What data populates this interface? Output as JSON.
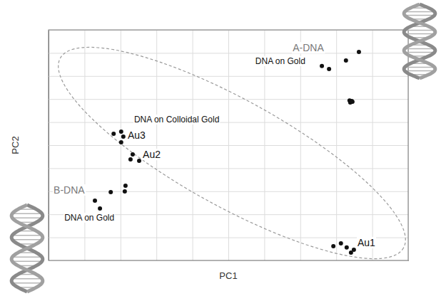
{
  "chart_data": {
    "type": "scatter",
    "x_label": "PC1",
    "y_label": "PC2",
    "xlim": [
      0,
      100
    ],
    "ylim": [
      0,
      100
    ],
    "xticks": [
      0,
      10,
      20,
      30,
      40,
      50,
      60,
      70,
      80,
      90,
      100
    ],
    "yticks": [
      0,
      10,
      20,
      30,
      40,
      50,
      60,
      70,
      80,
      90,
      100
    ],
    "grid": true,
    "tick_labels": false,
    "color": "#111111",
    "marker": "circle",
    "x": [
      86.3,
      82.7,
      76.0,
      78.0,
      83.7,
      84.3,
      83.9,
      84.5,
      20.2,
      18.1,
      20.8,
      20.2,
      23.4,
      22.8,
      25.2,
      21.4,
      21.2,
      17.3,
      12.9,
      14.3,
      79.2,
      81.3,
      82.9,
      84.1,
      84.9
    ],
    "values": [
      90.4,
      86.7,
      84.3,
      83.0,
      69.4,
      69.1,
      68.5,
      68.8,
      55.9,
      54.9,
      53.7,
      51.2,
      46.0,
      43.8,
      43.2,
      32.4,
      29.9,
      29.6,
      25.9,
      22.5,
      6.2,
      7.4,
      5.6,
      3.4,
      4.6
    ],
    "annotations": [
      {
        "text": "A-DNA",
        "x": 67.9,
        "y": 90.7,
        "color": "#7a7a7a"
      },
      {
        "text": "DNA on Gold",
        "x": 57.5,
        "y": 85.2,
        "color": "#111111"
      },
      {
        "text": "DNA on Colloidal Gold",
        "x": 23.8,
        "y": 59.9,
        "color": "#111111"
      },
      {
        "text": "Au3",
        "x": 22.0,
        "y": 52.8,
        "color": "#111111"
      },
      {
        "text": "Au2",
        "x": 26.2,
        "y": 44.4,
        "color": "#111111"
      },
      {
        "text": "B-DNA",
        "x": 1.4,
        "y": 29.0,
        "color": "#7a7a7a"
      },
      {
        "text": "DNA on Gold",
        "x": 4.4,
        "y": 17.3,
        "color": "#111111"
      },
      {
        "text": "Au1",
        "x": 85.9,
        "y": 6.2,
        "color": "#111111"
      }
    ]
  }
}
